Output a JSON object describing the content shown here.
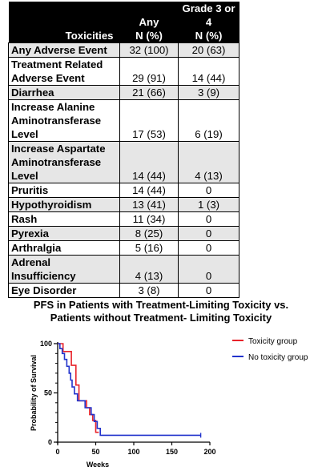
{
  "table": {
    "headers": {
      "label": "Toxicities",
      "any_top": "Any",
      "any_bottom": "N (%)",
      "grade_top": "Grade 3 or 4",
      "grade_bottom": "N (%)"
    },
    "rows": [
      {
        "label": [
          "Any Adverse Event"
        ],
        "any": "32 (100)",
        "grade": "20 (63)"
      },
      {
        "label": [
          "Treatment Related",
          "Adverse Event"
        ],
        "any": "29 (91)",
        "grade": "14 (44)"
      },
      {
        "label": [
          "Diarrhea"
        ],
        "any": "21 (66)",
        "grade": "3 (9)"
      },
      {
        "label": [
          "Increase Alanine",
          "Aminotransferase",
          "Level"
        ],
        "any": "17 (53)",
        "grade": "6 (19)"
      },
      {
        "label": [
          "Increase Aspartate",
          "Aminotransferase",
          "Level"
        ],
        "any": "14 (44)",
        "grade": "4 (13)"
      },
      {
        "label": [
          "Pruritis"
        ],
        "any": "14 (44)",
        "grade": "0"
      },
      {
        "label": [
          "Hypothyroidism"
        ],
        "any": "13 (41)",
        "grade": "1 (3)"
      },
      {
        "label": [
          "Rash"
        ],
        "any": "11 (34)",
        "grade": "0"
      },
      {
        "label": [
          "Pyrexia"
        ],
        "any": "8 (25)",
        "grade": "0"
      },
      {
        "label": [
          "Arthralgia"
        ],
        "any": "5 (16)",
        "grade": "0"
      },
      {
        "label": [
          "Adrenal Insufficiency"
        ],
        "any": "4 (13)",
        "grade": "0"
      },
      {
        "label": [
          "Eye Disorder"
        ],
        "any": "3 (8)",
        "grade": "0"
      }
    ]
  },
  "chart_data": {
    "type": "line",
    "title": [
      "PFS in Patients with Treatment-Limiting Toxicity vs.",
      "Patients without Treatment- Limiting Toxicity"
    ],
    "xlabel": "Weeks",
    "ylabel": "Probability of Survival",
    "xlim": [
      0,
      200
    ],
    "ylim": [
      0,
      100
    ],
    "xticks": [
      "0",
      "50",
      "100",
      "150",
      "200"
    ],
    "yticks": [
      "0",
      "50",
      "100"
    ],
    "legend_position": "top-right",
    "series": [
      {
        "name": "Toxicity group",
        "color": "#e8232a",
        "points": [
          [
            0,
            100
          ],
          [
            7,
            100
          ],
          [
            7,
            92
          ],
          [
            14,
            92
          ],
          [
            14,
            92
          ],
          [
            18,
            92
          ],
          [
            18,
            78
          ],
          [
            24,
            78
          ],
          [
            24,
            58
          ],
          [
            28,
            58
          ],
          [
            28,
            42
          ],
          [
            38,
            42
          ],
          [
            38,
            35
          ],
          [
            42,
            35
          ],
          [
            42,
            28
          ],
          [
            46,
            28
          ],
          [
            46,
            22
          ],
          [
            50,
            22
          ],
          [
            50,
            10
          ],
          [
            54,
            10
          ]
        ]
      },
      {
        "name": "No toxicity group",
        "color": "#2233cc",
        "points": [
          [
            0,
            100
          ],
          [
            3,
            100
          ],
          [
            3,
            95
          ],
          [
            6,
            95
          ],
          [
            6,
            90
          ],
          [
            9,
            90
          ],
          [
            9,
            84
          ],
          [
            12,
            84
          ],
          [
            12,
            77
          ],
          [
            15,
            77
          ],
          [
            15,
            70
          ],
          [
            17,
            70
          ],
          [
            17,
            63
          ],
          [
            19,
            63
          ],
          [
            19,
            56
          ],
          [
            22,
            56
          ],
          [
            22,
            49
          ],
          [
            26,
            49
          ],
          [
            26,
            42
          ],
          [
            36,
            42
          ],
          [
            36,
            35
          ],
          [
            44,
            35
          ],
          [
            44,
            28
          ],
          [
            48,
            28
          ],
          [
            48,
            21
          ],
          [
            52,
            21
          ],
          [
            52,
            14
          ],
          [
            56,
            14
          ],
          [
            56,
            7
          ],
          [
            62,
            7
          ],
          [
            62,
            7
          ],
          [
            188,
            7
          ]
        ]
      }
    ]
  }
}
